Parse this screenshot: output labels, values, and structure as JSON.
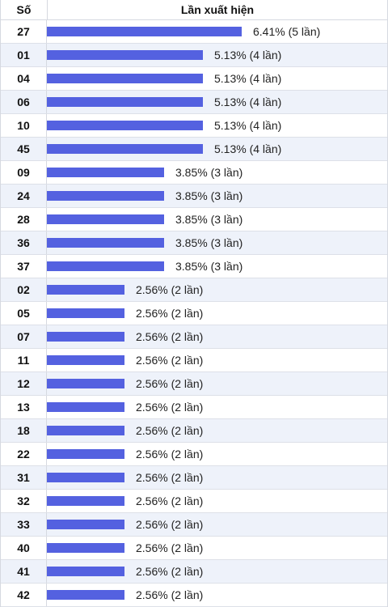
{
  "header": {
    "col_number": "Số",
    "col_frequency": "Lần xuất hiện"
  },
  "accent_color": "#5461e0",
  "chart_data": {
    "type": "bar",
    "orientation": "horizontal",
    "title": "",
    "xlabel": "Lần xuất hiện",
    "ylabel": "Số",
    "categories": [
      "27",
      "01",
      "04",
      "06",
      "10",
      "45",
      "09",
      "24",
      "28",
      "36",
      "37",
      "02",
      "05",
      "07",
      "11",
      "12",
      "13",
      "18",
      "22",
      "31",
      "32",
      "33",
      "40",
      "41",
      "42"
    ],
    "values": [
      6.41,
      5.13,
      5.13,
      5.13,
      5.13,
      5.13,
      3.85,
      3.85,
      3.85,
      3.85,
      3.85,
      2.56,
      2.56,
      2.56,
      2.56,
      2.56,
      2.56,
      2.56,
      2.56,
      2.56,
      2.56,
      2.56,
      2.56,
      2.56,
      2.56
    ],
    "labels": [
      "6.41% (5 lần)",
      "5.13% (4 lần)",
      "5.13% (4 lần)",
      "5.13% (4 lần)",
      "5.13% (4 lần)",
      "5.13% (4 lần)",
      "3.85% (3 lần)",
      "3.85% (3 lần)",
      "3.85% (3 lần)",
      "3.85% (3 lần)",
      "3.85% (3 lần)",
      "2.56% (2 lần)",
      "2.56% (2 lần)",
      "2.56% (2 lần)",
      "2.56% (2 lần)",
      "2.56% (2 lần)",
      "2.56% (2 lần)",
      "2.56% (2 lần)",
      "2.56% (2 lần)",
      "2.56% (2 lần)",
      "2.56% (2 lần)",
      "2.56% (2 lần)",
      "2.56% (2 lần)",
      "2.56% (2 lần)",
      "2.56% (2 lần)"
    ]
  }
}
